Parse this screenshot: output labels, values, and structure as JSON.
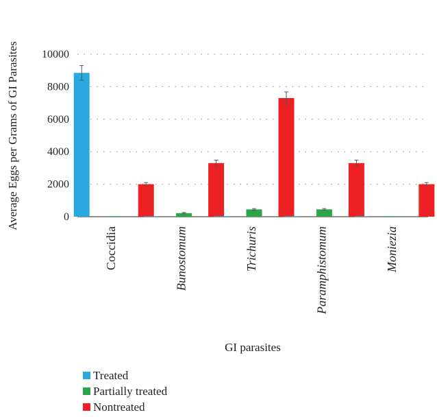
{
  "chart_data": {
    "type": "bar",
    "title": "",
    "xlabel": "GI parasites",
    "ylabel": "Average Eggs per Grams of GI Parasites",
    "ylim": [
      0,
      10000
    ],
    "yticks": [
      "0",
      "2000",
      "4000",
      "6000",
      "8000",
      "10000"
    ],
    "ytick_values": [
      0,
      2000,
      4000,
      6000,
      8000,
      10000
    ],
    "grid": "dotted horizontal",
    "legend_position": "bottom-left",
    "categories": [
      "Coccidia",
      "Bunostomum",
      "Trichuris",
      "Paramphistomum",
      "Moniezia"
    ],
    "category_italic": [
      false,
      true,
      true,
      true,
      true
    ],
    "series": [
      {
        "name": "Treated",
        "color": "#29a9e0",
        "values": [
          8850,
          0,
          0,
          0,
          0
        ],
        "errors": [
          450,
          0,
          0,
          0,
          0
        ]
      },
      {
        "name": "Partially treated",
        "color": "#2ca44a",
        "values": [
          0,
          220,
          450,
          450,
          0
        ],
        "errors": [
          0,
          40,
          50,
          50,
          0
        ]
      },
      {
        "name": "Nontreated",
        "color": "#ed2024",
        "values": [
          2000,
          3300,
          7300,
          3300,
          2000
        ],
        "errors": [
          100,
          180,
          380,
          180,
          100
        ]
      }
    ]
  }
}
